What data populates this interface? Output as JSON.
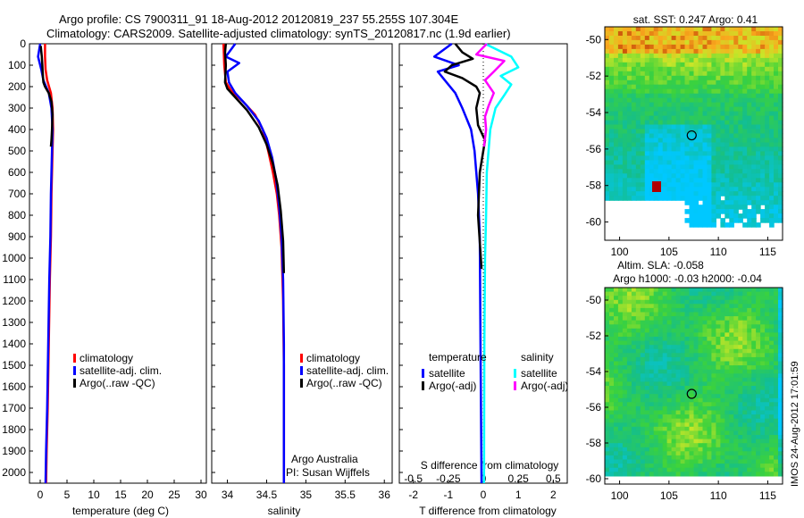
{
  "header": {
    "line1": "Argo profile: CS 7900311_91 18-Aug-2012 20120819_237 55.255S 107.304E",
    "line2": "Climatology: CARS2009. Satellite-adjusted climatology: synTS_20120817.nc (1.9d earlier)"
  },
  "colors": {
    "climatology": "#ff0000",
    "satellite": "#0000ff",
    "argo": "#000000",
    "sal_satellite": "#00ffff",
    "sal_argo": "#ff00ff"
  },
  "chart_data": [
    {
      "type": "line",
      "panel": "temperature",
      "xlabel": "temperature (deg C)",
      "xlim": [
        -2,
        31
      ],
      "ylim": [
        2050,
        0
      ],
      "xticks": [
        "0",
        "5",
        "10",
        "15",
        "20",
        "25",
        "30"
      ],
      "xtick_values": [
        0,
        5,
        10,
        15,
        20,
        25,
        30
      ],
      "yticks": [
        "0",
        "100",
        "200",
        "300",
        "400",
        "500",
        "600",
        "700",
        "800",
        "900",
        "1000",
        "1100",
        "1200",
        "1300",
        "1400",
        "1500",
        "1600",
        "1700",
        "1800",
        "1900",
        "2000"
      ],
      "ytick_values": [
        0,
        100,
        200,
        300,
        400,
        500,
        600,
        700,
        800,
        900,
        1000,
        1100,
        1200,
        1300,
        1400,
        1500,
        1600,
        1700,
        1800,
        1900,
        2000
      ],
      "legend": [
        "climatology",
        "satellite-adj. clim.",
        "Argo(..raw -QC)"
      ],
      "series": [
        {
          "name": "climatology",
          "x": [
            0.9,
            0.9,
            1.0,
            1.3,
            2.0,
            2.3,
            2.4,
            2.3,
            2.1,
            2.0,
            1.8,
            1.6,
            1.4,
            1.2,
            1.1
          ],
          "y": [
            0,
            60,
            120,
            170,
            230,
            300,
            400,
            500,
            700,
            900,
            1100,
            1400,
            1700,
            1900,
            2050
          ]
        },
        {
          "name": "satellite-adj. clim.",
          "x": [
            0.0,
            -0.4,
            0.2,
            0.6,
            1.6,
            2.1,
            2.3,
            2.2,
            2.0,
            1.9,
            1.7,
            1.5,
            1.3,
            1.1,
            1.0
          ],
          "y": [
            0,
            60,
            120,
            170,
            230,
            300,
            400,
            500,
            700,
            900,
            1100,
            1400,
            1700,
            1900,
            2050
          ]
        },
        {
          "name": "Argo(..raw -QC)",
          "x": [
            0.1,
            0.3,
            0.4,
            0.5,
            0.6,
            0.9,
            1.6,
            2.1,
            2.3,
            2.2,
            2.1,
            2.0
          ],
          "y": [
            10,
            60,
            100,
            150,
            180,
            200,
            230,
            270,
            330,
            400,
            450,
            480
          ]
        }
      ]
    },
    {
      "type": "line",
      "panel": "salinity",
      "xlabel": "salinity",
      "xlim": [
        33.8,
        36.1
      ],
      "ylim": [
        2050,
        0
      ],
      "xticks": [
        "34",
        "34.5",
        "35",
        "35.5",
        "36"
      ],
      "xtick_values": [
        34,
        34.5,
        35,
        35.5,
        36
      ],
      "legend": [
        "climatology",
        "satellite-adj. clim.",
        "Argo(..raw -QC)"
      ],
      "annotation": [
        "Argo Australia",
        "PI: Susan Wijffels"
      ],
      "series": [
        {
          "name": "climatology",
          "x": [
            33.95,
            33.96,
            33.98,
            34.05,
            34.2,
            34.35,
            34.45,
            34.52,
            34.58,
            34.63,
            34.66,
            34.69,
            34.71,
            34.72,
            34.72,
            34.72
          ],
          "y": [
            0,
            100,
            180,
            220,
            270,
            330,
            400,
            500,
            600,
            700,
            800,
            950,
            1200,
            1500,
            1800,
            2050
          ]
        },
        {
          "name": "satellite-adj. clim.",
          "x": [
            34.1,
            33.98,
            34.15,
            34.0,
            34.02,
            34.1,
            34.25,
            34.4,
            34.5,
            34.57,
            34.62,
            34.66,
            34.69,
            34.71,
            34.72,
            34.72,
            34.72
          ],
          "y": [
            0,
            60,
            90,
            130,
            180,
            230,
            290,
            360,
            440,
            530,
            630,
            760,
            900,
            1100,
            1400,
            1700,
            2050
          ]
        },
        {
          "name": "Argo(..raw -QC)",
          "x": [
            33.98,
            33.97,
            33.98,
            33.97,
            34.0,
            34.1,
            34.25,
            34.4,
            34.5,
            34.58,
            34.64,
            34.68,
            34.71,
            34.72
          ],
          "y": [
            0,
            40,
            100,
            180,
            210,
            250,
            310,
            390,
            470,
            560,
            660,
            780,
            920,
            1070
          ]
        }
      ]
    },
    {
      "type": "line",
      "panel": "difference",
      "xlabel": "T difference from climatology",
      "x2label": "S difference from climatology",
      "xlim": [
        -2.4,
        2.4
      ],
      "ylim": [
        2050,
        0
      ],
      "xticks": [
        "-2",
        "-1",
        "0",
        "1",
        "2"
      ],
      "xtick_values": [
        -2,
        -1,
        0,
        1,
        2
      ],
      "x2ticks": [
        "-0.5",
        "-0.25",
        "0",
        "0.25",
        "0.5"
      ],
      "x2tick_values": [
        -0.5,
        -0.25,
        0,
        0.25,
        0.5
      ],
      "legend_headers": [
        "temperature",
        "salinity"
      ],
      "legend": [
        "satellite",
        "Argo(-adj)",
        "satellite",
        "Argo(-adj)"
      ],
      "series": [
        {
          "name": "satellite",
          "quantity": "temperature",
          "x": [
            -0.9,
            -1.4,
            -0.7,
            -1.3,
            -1.1,
            -0.8,
            -0.6,
            -0.35,
            -0.25,
            -0.2,
            -0.15,
            -0.1,
            -0.08,
            -0.05
          ],
          "y": [
            0,
            60,
            100,
            130,
            170,
            230,
            300,
            400,
            500,
            600,
            700,
            900,
            1400,
            2050
          ]
        },
        {
          "name": "Argo(-adj)",
          "quantity": "temperature",
          "x": [
            -0.8,
            -0.6,
            -0.3,
            -0.9,
            -1.1,
            -0.6,
            -0.2,
            -0.1,
            -0.2,
            -0.15,
            0.05,
            -0.1,
            -0.15,
            -0.05
          ],
          "y": [
            0,
            40,
            70,
            100,
            130,
            160,
            200,
            230,
            300,
            380,
            450,
            600,
            800,
            1050
          ]
        },
        {
          "name": "satellite",
          "quantity": "salinity",
          "x": [
            0.05,
            0.8,
            1.0,
            0.5,
            0.8,
            0.6,
            0.35,
            0.2,
            0.15,
            0.1,
            0.08,
            0.05,
            0.03,
            0.02
          ],
          "y": [
            0,
            60,
            110,
            150,
            190,
            240,
            300,
            400,
            500,
            600,
            800,
            1000,
            1400,
            2050
          ]
        },
        {
          "name": "Argo(-adj)",
          "quantity": "salinity",
          "x": [
            0.1,
            -0.2,
            0.6,
            0.3,
            0.05,
            0.3,
            0.15,
            0.05,
            0.08,
            0.02
          ],
          "y": [
            0,
            50,
            80,
            130,
            170,
            230,
            290,
            340,
            400,
            480
          ]
        }
      ]
    },
    {
      "type": "heatmap",
      "panel": "sst-map",
      "title": "sat. SST: 0.247 Argo: 0.41",
      "xlim": [
        98.5,
        116.5
      ],
      "ylim": [
        -61,
        -49.3
      ],
      "xticks": [
        "100",
        "105",
        "110",
        "115"
      ],
      "xtick_values": [
        100,
        105,
        110,
        115
      ],
      "yticks": [
        "-50",
        "-52",
        "-54",
        "-56",
        "-58",
        "-60"
      ],
      "ytick_values": [
        -50,
        -52,
        -54,
        -56,
        -58,
        -60
      ],
      "marker": {
        "lon": 107.3,
        "lat": -55.25
      }
    },
    {
      "type": "heatmap",
      "panel": "sla-map",
      "title": "Altim. SLA: -0.058",
      "subtitle": "Argo h1000: -0.03 h2000: -0.04",
      "xlim": [
        98.5,
        116.5
      ],
      "ylim": [
        -60.3,
        -49.3
      ],
      "xticks": [
        "100",
        "105",
        "110",
        "115"
      ],
      "xtick_values": [
        100,
        105,
        110,
        115
      ],
      "yticks": [
        "-50",
        "-52",
        "-54",
        "-56",
        "-58",
        "-60"
      ],
      "ytick_values": [
        -50,
        -52,
        -54,
        -56,
        -58,
        -60
      ],
      "marker": {
        "lon": 107.3,
        "lat": -55.25
      },
      "side_label": "IMOS 24-Aug-2012 17:01:59"
    }
  ]
}
